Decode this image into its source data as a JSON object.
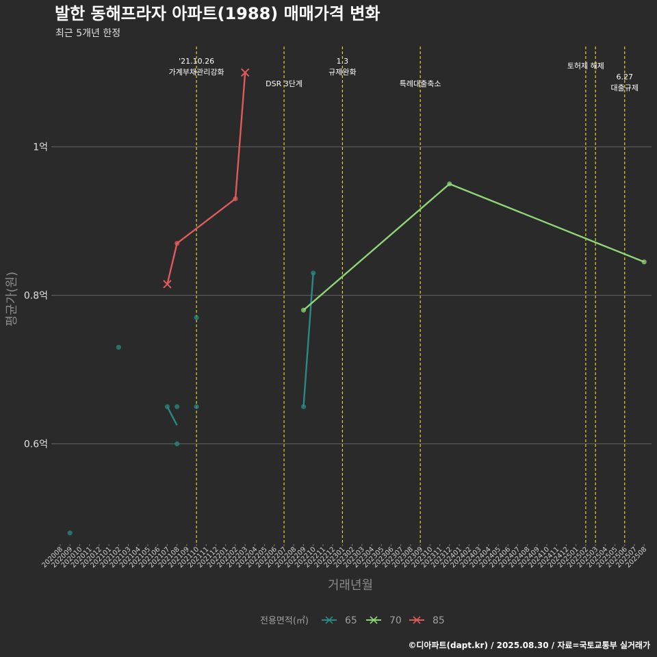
{
  "chart_data": {
    "type": "line",
    "title": "발한 동해프라자 아파트(1988) 매매가격 변화",
    "subtitle": "최근 5개년 한정",
    "xlabel": "거래년월",
    "ylabel": "평균가(원)",
    "caption": "©디아파트(dapt.kr) / 2025.08.30 / 자료=국토교통부 실거래가",
    "ylim": [
      0.465,
      1.135
    ],
    "yticks": [
      {
        "value": 0.6,
        "label": "0.6억"
      },
      {
        "value": 0.8,
        "label": "0.8억"
      },
      {
        "value": 1.0,
        "label": "1억"
      }
    ],
    "x_categories": [
      "202008",
      "202009",
      "202010",
      "202011",
      "202012",
      "202101",
      "202102",
      "202103",
      "202104",
      "202105",
      "202106",
      "202107",
      "202108",
      "202109",
      "202110",
      "202111",
      "202112",
      "202201",
      "202202",
      "202203",
      "202204",
      "202205",
      "202206",
      "202207",
      "202208",
      "202209",
      "202210",
      "202211",
      "202212",
      "202301",
      "202302",
      "202303",
      "202304",
      "202305",
      "202306",
      "202307",
      "202308",
      "202309",
      "202310",
      "202311",
      "202312",
      "202401",
      "202402",
      "202403",
      "202404",
      "202405",
      "202406",
      "202407",
      "202408",
      "202409",
      "202410",
      "202411",
      "202412",
      "202501",
      "202502",
      "202503",
      "202504",
      "202505",
      "202506",
      "202507",
      "202508"
    ],
    "events": [
      {
        "month": "202110",
        "lines": [
          "'21.10.26",
          "가계부채관리강화"
        ],
        "row": 0
      },
      {
        "month": "202207",
        "lines": [
          "DSR 3단계"
        ],
        "row": 2
      },
      {
        "month": "202301",
        "lines": [
          "1.3",
          "규제완화"
        ],
        "row": 0
      },
      {
        "month": "202309",
        "lines": [
          "특례대출축소"
        ],
        "row": 2
      },
      {
        "month": "202502",
        "lines": [
          "토허제 해제"
        ],
        "row": 1
      },
      {
        "month": "202503",
        "lines": [],
        "row": 1
      },
      {
        "month": "202506",
        "lines": [
          "6.27",
          "대출규제"
        ],
        "row": 3
      }
    ],
    "legend_title": "전용면적(㎡)",
    "series": [
      {
        "name": "65",
        "color": "#2a8a84",
        "line_points": [
          {
            "x": "202107",
            "y": 0.65
          },
          {
            "x": "202108",
            "y": 0.625
          }
        ],
        "line2_points": [
          {
            "x": "202209",
            "y": 0.65
          },
          {
            "x": "202210",
            "y": 0.83
          }
        ],
        "dots": [
          {
            "x": "202009",
            "y": 0.48
          },
          {
            "x": "202102",
            "y": 0.73
          },
          {
            "x": "202107",
            "y": 0.65
          },
          {
            "x": "202108",
            "y": 0.65
          },
          {
            "x": "202108",
            "y": 0.6
          },
          {
            "x": "202110",
            "y": 0.77
          },
          {
            "x": "202110",
            "y": 0.65
          },
          {
            "x": "202209",
            "y": 0.65
          },
          {
            "x": "202210",
            "y": 0.83
          }
        ]
      },
      {
        "name": "70",
        "color": "#8fd677",
        "line_points": [
          {
            "x": "202209",
            "y": 0.78
          },
          {
            "x": "202312",
            "y": 0.95
          },
          {
            "x": "202508",
            "y": 0.845
          }
        ],
        "dots": [
          {
            "x": "202209",
            "y": 0.78
          },
          {
            "x": "202312",
            "y": 0.95
          },
          {
            "x": "202508",
            "y": 0.845
          }
        ]
      },
      {
        "name": "85",
        "color": "#e05c5c",
        "line_points": [
          {
            "x": "202107",
            "y": 0.815
          },
          {
            "x": "202108",
            "y": 0.87
          },
          {
            "x": "202202",
            "y": 0.93
          },
          {
            "x": "202203",
            "y": 1.1
          }
        ],
        "dots": [
          {
            "x": "202108",
            "y": 0.87
          },
          {
            "x": "202202",
            "y": 0.93
          }
        ],
        "crosses": [
          {
            "x": "202107",
            "y": 0.815
          },
          {
            "x": "202203",
            "y": 1.1
          }
        ]
      }
    ]
  }
}
